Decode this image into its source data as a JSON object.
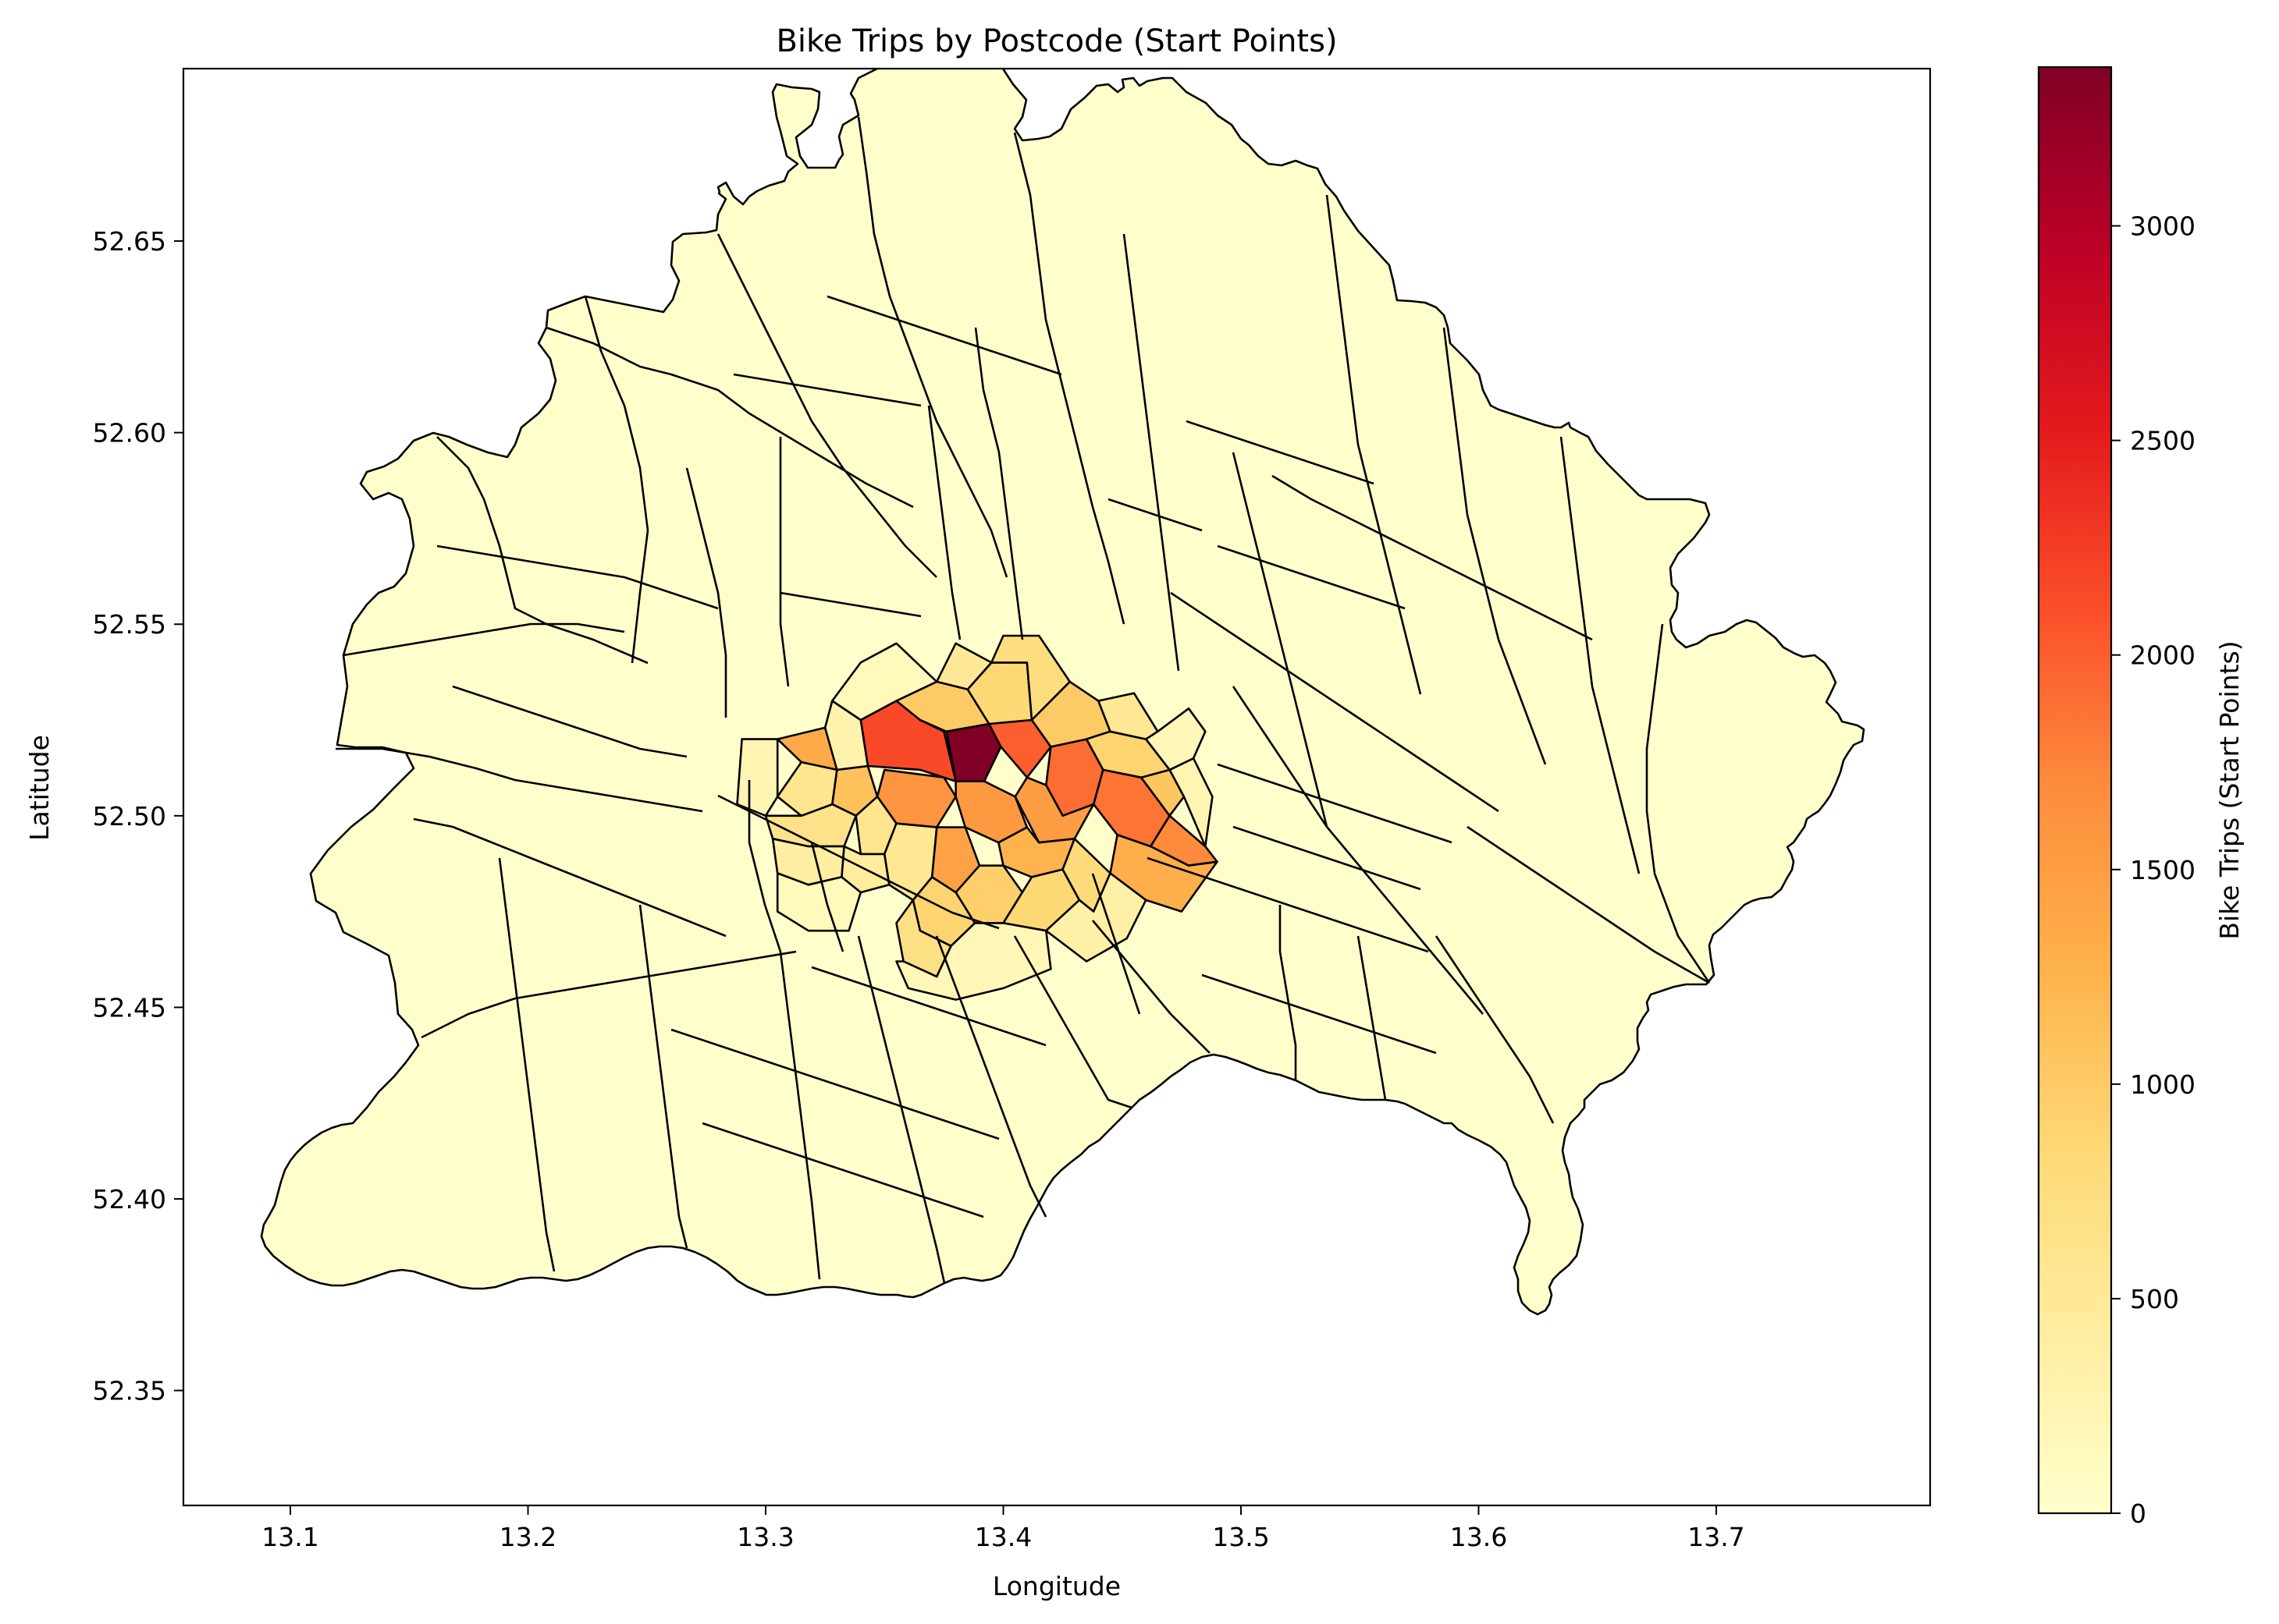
{
  "chart_data": {
    "type": "choropleth",
    "title": "Bike Trips by Postcode (Start Points)",
    "xlabel": "Longitude",
    "ylabel": "Latitude",
    "xlim": [
      13.055,
      13.79
    ],
    "ylim": [
      52.32,
      52.695
    ],
    "x_ticks": [
      "13.1",
      "13.2",
      "13.3",
      "13.4",
      "13.5",
      "13.6",
      "13.7"
    ],
    "x_tick_values": [
      13.1,
      13.2,
      13.3,
      13.4,
      13.5,
      13.6,
      13.7
    ],
    "y_ticks": [
      "52.35",
      "52.40",
      "52.45",
      "52.50",
      "52.55",
      "52.60",
      "52.65"
    ],
    "y_tick_values": [
      52.35,
      52.4,
      52.45,
      52.5,
      52.55,
      52.6,
      52.65
    ],
    "grid": false,
    "colormap": "YlOrRd",
    "colorbar": {
      "label": "Bike Trips (Start Points)",
      "min": 0,
      "max": 3370,
      "ticks": [
        "0",
        "500",
        "1000",
        "1500",
        "2000",
        "2500",
        "3000"
      ],
      "tick_values": [
        0,
        500,
        1000,
        1500,
        2000,
        2500,
        3000
      ],
      "stops": [
        "#ffffcc",
        "#ffeda0",
        "#fed976",
        "#feb24c",
        "#fd8d3c",
        "#fc4e2a",
        "#e31a1c",
        "#bd0026",
        "#800026"
      ]
    },
    "base_color": "#ffffcc",
    "edge_color": "#000000",
    "regions": [
      {
        "outline": [
          [
            13.376,
            52.522
          ],
          [
            13.394,
            52.524
          ],
          [
            13.399,
            52.518
          ],
          [
            13.392,
            52.509
          ],
          [
            13.38,
            52.509
          ],
          [
            13.378,
            52.516
          ]
        ],
        "value": 3370
      },
      {
        "outline": [
          [
            13.34,
            52.525
          ],
          [
            13.355,
            52.53
          ],
          [
            13.365,
            52.525
          ],
          [
            13.375,
            52.522
          ],
          [
            13.38,
            52.509
          ],
          [
            13.365,
            52.512
          ],
          [
            13.343,
            52.513
          ]
        ],
        "value": 2150
      },
      {
        "outline": [
          [
            13.394,
            52.524
          ],
          [
            13.412,
            52.525
          ],
          [
            13.42,
            52.518
          ],
          [
            13.41,
            52.51
          ],
          [
            13.399,
            52.518
          ]
        ],
        "value": 2000
      },
      {
        "outline": [
          [
            13.42,
            52.518
          ],
          [
            13.435,
            52.52
          ],
          [
            13.442,
            52.512
          ],
          [
            13.438,
            52.503
          ],
          [
            13.425,
            52.5
          ],
          [
            13.418,
            52.508
          ]
        ],
        "value": 1900
      },
      {
        "outline": [
          [
            13.442,
            52.512
          ],
          [
            13.458,
            52.51
          ],
          [
            13.47,
            52.5
          ],
          [
            13.462,
            52.492
          ],
          [
            13.448,
            52.495
          ],
          [
            13.438,
            52.503
          ]
        ],
        "value": 1850
      },
      {
        "outline": [
          [
            13.462,
            52.492
          ],
          [
            13.47,
            52.5
          ],
          [
            13.485,
            52.492
          ],
          [
            13.49,
            52.488
          ],
          [
            13.478,
            52.487
          ]
        ],
        "value": 1700
      },
      {
        "outline": [
          [
            13.35,
            52.512
          ],
          [
            13.375,
            52.51
          ],
          [
            13.38,
            52.505
          ],
          [
            13.372,
            52.497
          ],
          [
            13.355,
            52.498
          ],
          [
            13.347,
            52.505
          ]
        ],
        "value": 1600
      },
      {
        "outline": [
          [
            13.38,
            52.509
          ],
          [
            13.392,
            52.509
          ],
          [
            13.405,
            52.505
          ],
          [
            13.41,
            52.497
          ],
          [
            13.398,
            52.493
          ],
          [
            13.384,
            52.497
          ],
          [
            13.38,
            52.505
          ]
        ],
        "value": 1550
      },
      {
        "outline": [
          [
            13.41,
            52.51
          ],
          [
            13.418,
            52.508
          ],
          [
            13.425,
            52.5
          ],
          [
            13.438,
            52.503
          ],
          [
            13.43,
            52.494
          ],
          [
            13.415,
            52.493
          ],
          [
            13.405,
            52.505
          ]
        ],
        "value": 1500
      },
      {
        "outline": [
          [
            13.372,
            52.497
          ],
          [
            13.384,
            52.497
          ],
          [
            13.39,
            52.487
          ],
          [
            13.38,
            52.48
          ],
          [
            13.37,
            52.484
          ]
        ],
        "value": 1450
      },
      {
        "outline": [
          [
            13.305,
            52.52
          ],
          [
            13.325,
            52.523
          ],
          [
            13.34,
            52.52
          ],
          [
            13.343,
            52.513
          ],
          [
            13.33,
            52.512
          ],
          [
            13.315,
            52.514
          ]
        ],
        "value": 1350
      },
      {
        "outline": [
          [
            13.448,
            52.495
          ],
          [
            13.462,
            52.492
          ],
          [
            13.478,
            52.487
          ],
          [
            13.49,
            52.488
          ],
          [
            13.475,
            52.475
          ],
          [
            13.46,
            52.478
          ],
          [
            13.445,
            52.485
          ]
        ],
        "value": 1300
      },
      {
        "outline": [
          [
            13.398,
            52.493
          ],
          [
            13.41,
            52.497
          ],
          [
            13.415,
            52.493
          ],
          [
            13.43,
            52.494
          ],
          [
            13.425,
            52.486
          ],
          [
            13.412,
            52.484
          ],
          [
            13.4,
            52.487
          ]
        ],
        "value": 1250
      },
      {
        "outline": [
          [
            13.33,
            52.512
          ],
          [
            13.343,
            52.513
          ],
          [
            13.347,
            52.505
          ],
          [
            13.338,
            52.5
          ],
          [
            13.328,
            52.503
          ]
        ],
        "value": 1100
      },
      {
        "outline": [
          [
            13.458,
            52.51
          ],
          [
            13.47,
            52.512
          ],
          [
            13.476,
            52.505
          ],
          [
            13.47,
            52.5
          ]
        ],
        "value": 1050
      },
      {
        "outline": [
          [
            13.355,
            52.53
          ],
          [
            13.372,
            52.535
          ],
          [
            13.385,
            52.533
          ],
          [
            13.394,
            52.524
          ],
          [
            13.376,
            52.522
          ],
          [
            13.365,
            52.525
          ]
        ],
        "value": 1000
      },
      {
        "outline": [
          [
            13.412,
            52.525
          ],
          [
            13.428,
            52.535
          ],
          [
            13.44,
            52.53
          ],
          [
            13.445,
            52.522
          ],
          [
            13.435,
            52.52
          ],
          [
            13.42,
            52.518
          ]
        ],
        "value": 1000
      },
      {
        "outline": [
          [
            13.38,
            52.48
          ],
          [
            13.39,
            52.487
          ],
          [
            13.4,
            52.487
          ],
          [
            13.408,
            52.48
          ],
          [
            13.4,
            52.472
          ],
          [
            13.388,
            52.472
          ]
        ],
        "value": 950
      },
      {
        "outline": [
          [
            13.435,
            52.52
          ],
          [
            13.445,
            52.522
          ],
          [
            13.46,
            52.52
          ],
          [
            13.47,
            52.512
          ],
          [
            13.458,
            52.51
          ],
          [
            13.442,
            52.512
          ]
        ],
        "value": 900
      },
      {
        "outline": [
          [
            13.37,
            52.484
          ],
          [
            13.38,
            52.48
          ],
          [
            13.388,
            52.472
          ],
          [
            13.378,
            52.466
          ],
          [
            13.365,
            52.47
          ],
          [
            13.362,
            52.478
          ]
        ],
        "value": 900
      },
      {
        "outline": [
          [
            13.385,
            52.533
          ],
          [
            13.395,
            52.54
          ],
          [
            13.41,
            52.54
          ],
          [
            13.412,
            52.525
          ],
          [
            13.394,
            52.524
          ]
        ],
        "value": 850
      },
      {
        "outline": [
          [
            13.4,
            52.472
          ],
          [
            13.408,
            52.48
          ],
          [
            13.412,
            52.484
          ],
          [
            13.425,
            52.486
          ],
          [
            13.432,
            52.478
          ],
          [
            13.418,
            52.47
          ]
        ],
        "value": 850
      },
      {
        "outline": [
          [
            13.425,
            52.486
          ],
          [
            13.43,
            52.494
          ],
          [
            13.445,
            52.485
          ],
          [
            13.438,
            52.475
          ],
          [
            13.432,
            52.478
          ]
        ],
        "value": 800
      },
      {
        "outline": [
          [
            13.395,
            52.54
          ],
          [
            13.4,
            52.547
          ],
          [
            13.415,
            52.547
          ],
          [
            13.428,
            52.535
          ],
          [
            13.412,
            52.525
          ],
          [
            13.41,
            52.54
          ]
        ],
        "value": 750
      },
      {
        "outline": [
          [
            13.362,
            52.478
          ],
          [
            13.365,
            52.47
          ],
          [
            13.378,
            52.466
          ],
          [
            13.372,
            52.458
          ],
          [
            13.358,
            52.462
          ],
          [
            13.355,
            52.472
          ]
        ],
        "value": 700
      },
      {
        "outline": [
          [
            13.3,
            52.5
          ],
          [
            13.315,
            52.5
          ],
          [
            13.328,
            52.503
          ],
          [
            13.338,
            52.5
          ],
          [
            13.333,
            52.492
          ],
          [
            13.318,
            52.492
          ],
          [
            13.303,
            52.494
          ]
        ],
        "value": 650
      },
      {
        "outline": [
          [
            13.338,
            52.5
          ],
          [
            13.347,
            52.505
          ],
          [
            13.355,
            52.498
          ],
          [
            13.35,
            52.49
          ],
          [
            13.34,
            52.49
          ]
        ],
        "value": 600
      },
      {
        "outline": [
          [
            13.315,
            52.514
          ],
          [
            13.33,
            52.512
          ],
          [
            13.328,
            52.503
          ],
          [
            13.315,
            52.5
          ],
          [
            13.305,
            52.505
          ]
        ],
        "value": 600
      },
      {
        "outline": [
          [
            13.44,
            52.53
          ],
          [
            13.455,
            52.532
          ],
          [
            13.465,
            52.522
          ],
          [
            13.46,
            52.52
          ],
          [
            13.445,
            52.522
          ]
        ],
        "value": 550
      },
      {
        "outline": [
          [
            13.35,
            52.49
          ],
          [
            13.355,
            52.498
          ],
          [
            13.372,
            52.497
          ],
          [
            13.37,
            52.484
          ],
          [
            13.362,
            52.478
          ],
          [
            13.352,
            52.482
          ]
        ],
        "value": 550
      },
      {
        "outline": [
          [
            13.372,
            52.535
          ],
          [
            13.38,
            52.545
          ],
          [
            13.395,
            52.54
          ],
          [
            13.385,
            52.533
          ]
        ],
        "value": 500
      },
      {
        "outline": [
          [
            13.333,
            52.492
          ],
          [
            13.34,
            52.49
          ],
          [
            13.35,
            52.49
          ],
          [
            13.352,
            52.482
          ],
          [
            13.34,
            52.48
          ],
          [
            13.332,
            52.484
          ]
        ],
        "value": 450
      },
      {
        "outline": [
          [
            13.303,
            52.494
          ],
          [
            13.318,
            52.492
          ],
          [
            13.333,
            52.492
          ],
          [
            13.332,
            52.484
          ],
          [
            13.318,
            52.482
          ],
          [
            13.305,
            52.485
          ]
        ],
        "value": 400
      },
      {
        "outline": [
          [
            13.418,
            52.47
          ],
          [
            13.432,
            52.478
          ],
          [
            13.438,
            52.475
          ],
          [
            13.445,
            52.485
          ],
          [
            13.46,
            52.478
          ],
          [
            13.452,
            52.468
          ],
          [
            13.435,
            52.462
          ]
        ],
        "value": 350
      },
      {
        "outline": [
          [
            13.34,
            52.525
          ],
          [
            13.343,
            52.513
          ],
          [
            13.33,
            52.512
          ],
          [
            13.325,
            52.523
          ],
          [
            13.328,
            52.53
          ]
        ],
        "value": 300
      },
      {
        "outline": [
          [
            13.29,
            52.52
          ],
          [
            13.305,
            52.52
          ],
          [
            13.305,
            52.505
          ],
          [
            13.3,
            52.5
          ],
          [
            13.288,
            52.503
          ]
        ],
        "value": 250
      },
      {
        "outline": [
          [
            13.47,
            52.512
          ],
          [
            13.48,
            52.515
          ],
          [
            13.488,
            52.505
          ],
          [
            13.485,
            52.492
          ],
          [
            13.476,
            52.505
          ]
        ],
        "value": 250
      },
      {
        "outline": [
          [
            13.355,
            52.462
          ],
          [
            13.358,
            52.462
          ],
          [
            13.372,
            52.458
          ],
          [
            13.378,
            52.466
          ],
          [
            13.388,
            52.472
          ],
          [
            13.4,
            52.472
          ],
          [
            13.418,
            52.47
          ],
          [
            13.42,
            52.46
          ],
          [
            13.4,
            52.455
          ],
          [
            13.38,
            52.452
          ],
          [
            13.36,
            52.455
          ]
        ],
        "value": 200
      },
      {
        "outline": [
          [
            13.46,
            52.52
          ],
          [
            13.465,
            52.522
          ],
          [
            13.478,
            52.528
          ],
          [
            13.485,
            52.522
          ],
          [
            13.48,
            52.515
          ],
          [
            13.47,
            52.512
          ]
        ],
        "value": 200
      },
      {
        "outline": [
          [
            13.328,
            52.53
          ],
          [
            13.34,
            52.54
          ],
          [
            13.355,
            52.545
          ],
          [
            13.372,
            52.535
          ],
          [
            13.355,
            52.53
          ],
          [
            13.34,
            52.525
          ]
        ],
        "value": 150
      },
      {
        "outline": [
          [
            13.305,
            52.485
          ],
          [
            13.318,
            52.482
          ],
          [
            13.332,
            52.484
          ],
          [
            13.34,
            52.48
          ],
          [
            13.335,
            52.47
          ],
          [
            13.318,
            52.47
          ],
          [
            13.305,
            52.475
          ]
        ],
        "value": 150
      }
    ]
  }
}
